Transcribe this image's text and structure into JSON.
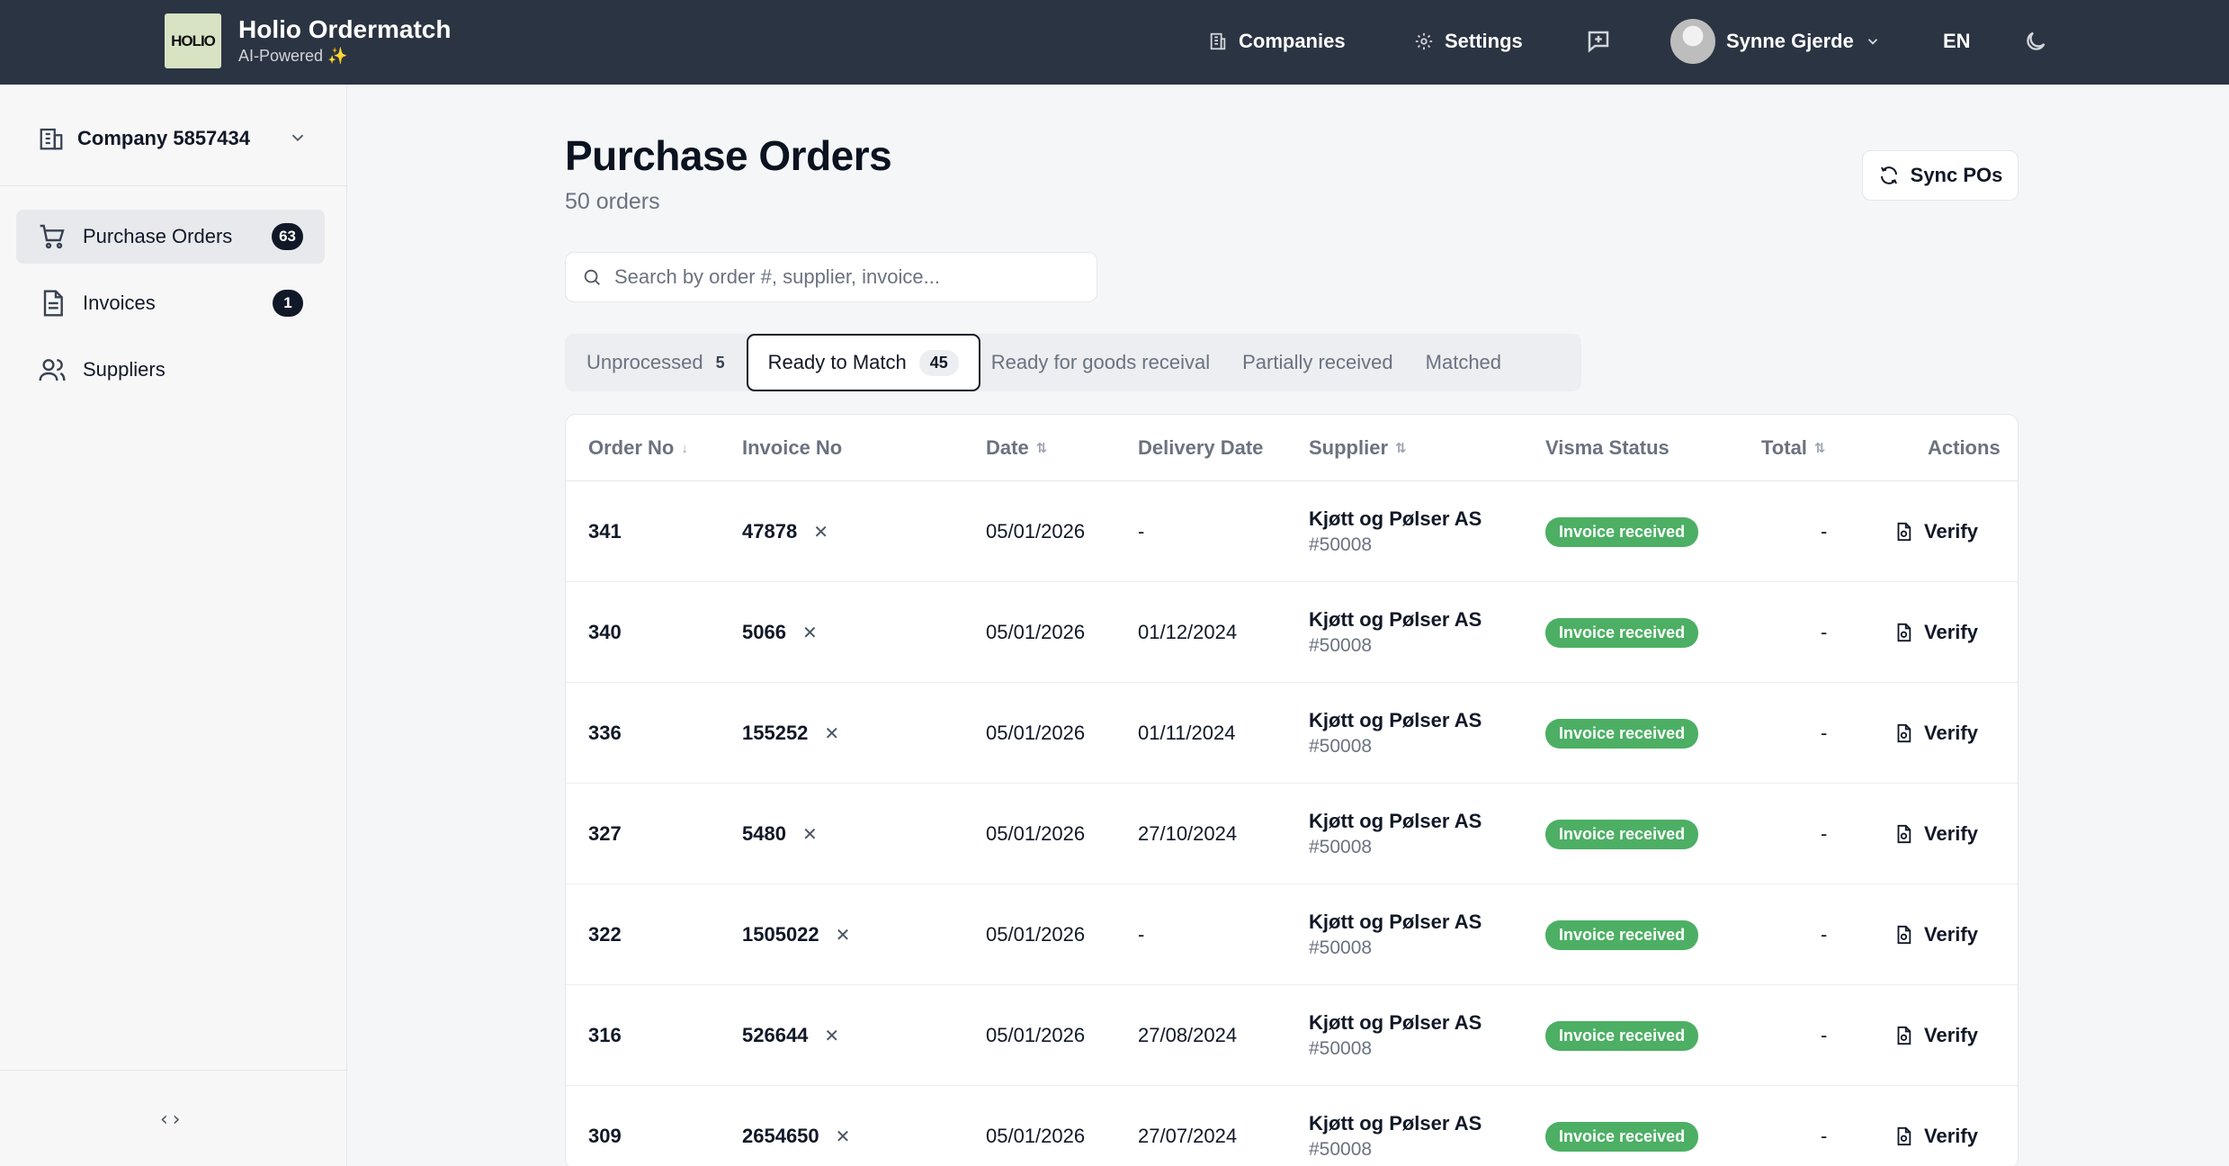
{
  "app": {
    "logo_text": "HOLIO",
    "title": "Holio Ordermatch",
    "subtitle": "AI-Powered ✨"
  },
  "topnav": {
    "companies": "Companies",
    "settings": "Settings",
    "user_name": "Synne Gjerde",
    "language": "EN"
  },
  "sidebar": {
    "company": "Company 5857434",
    "items": [
      {
        "label": "Purchase Orders",
        "badge": "63"
      },
      {
        "label": "Invoices",
        "badge": "1"
      },
      {
        "label": "Suppliers"
      }
    ],
    "collapse_glyph": "‹›"
  },
  "page": {
    "title": "Purchase Orders",
    "subtitle": "50 orders",
    "sync_label": "Sync POs",
    "search_placeholder": "Search by order #, supplier, invoice..."
  },
  "tabs": [
    {
      "label": "Unprocessed",
      "count": "5"
    },
    {
      "label": "Ready to Match",
      "count": "45"
    },
    {
      "label": "Ready for goods receival"
    },
    {
      "label": "Partially received"
    },
    {
      "label": "Matched"
    }
  ],
  "table": {
    "columns": [
      "Order No",
      "Invoice No",
      "Date",
      "Delivery Date",
      "Supplier",
      "Visma Status",
      "Total",
      "Actions"
    ],
    "rows": [
      {
        "order": "341",
        "invoice": "47878",
        "date": "05/01/2026",
        "delivery": "-",
        "supplier": "Kjøtt og Pølser AS",
        "supplier_id": "#50008",
        "status": "Invoice received",
        "total": "-",
        "action": "Verify"
      },
      {
        "order": "340",
        "invoice": "5066",
        "date": "05/01/2026",
        "delivery": "01/12/2024",
        "supplier": "Kjøtt og Pølser AS",
        "supplier_id": "#50008",
        "status": "Invoice received",
        "total": "-",
        "action": "Verify"
      },
      {
        "order": "336",
        "invoice": "155252",
        "date": "05/01/2026",
        "delivery": "01/11/2024",
        "supplier": "Kjøtt og Pølser AS",
        "supplier_id": "#50008",
        "status": "Invoice received",
        "total": "-",
        "action": "Verify"
      },
      {
        "order": "327",
        "invoice": "5480",
        "date": "05/01/2026",
        "delivery": "27/10/2024",
        "supplier": "Kjøtt og Pølser AS",
        "supplier_id": "#50008",
        "status": "Invoice received",
        "total": "-",
        "action": "Verify"
      },
      {
        "order": "322",
        "invoice": "1505022",
        "date": "05/01/2026",
        "delivery": "-",
        "supplier": "Kjøtt og Pølser AS",
        "supplier_id": "#50008",
        "status": "Invoice received",
        "total": "-",
        "action": "Verify"
      },
      {
        "order": "316",
        "invoice": "526644",
        "date": "05/01/2026",
        "delivery": "27/08/2024",
        "supplier": "Kjøtt og Pølser AS",
        "supplier_id": "#50008",
        "status": "Invoice received",
        "total": "-",
        "action": "Verify"
      },
      {
        "order": "309",
        "invoice": "2654650",
        "date": "05/01/2026",
        "delivery": "27/07/2024",
        "supplier": "Kjøtt og Pølser AS",
        "supplier_id": "#50008",
        "status": "Invoice received",
        "total": "-",
        "action": "Verify"
      }
    ]
  },
  "colors": {
    "topbar": "#2b3442",
    "status_green": "#4caf64",
    "badge_dark": "#111827"
  }
}
